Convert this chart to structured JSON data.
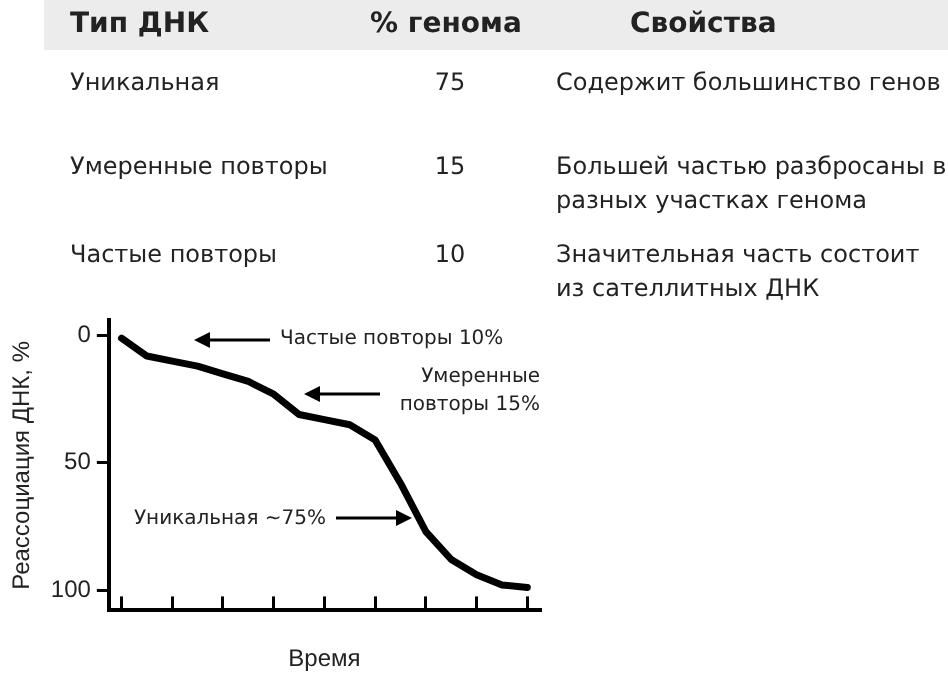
{
  "chart_data": [
    {
      "type": "other",
      "categories": [
        "Уникальная",
        "Умеренные повторы",
        "Частые повторы"
      ],
      "values": [
        75,
        15,
        10
      ],
      "data_labels": true,
      "annotations": [
        "Тип ДНК",
        "% генома",
        "Свойства",
        "Содержит большинство генов",
        "Большей частью разбросаны в разных участках генома",
        "Значительная часть состоит из сателлитных ДНК"
      ]
    },
    {
      "type": "line",
      "xlabel": "Время",
      "ylabel": "Реассоциация ДНК, %",
      "categories": [
        null,
        null,
        null,
        null,
        null,
        null,
        null,
        null,
        null,
        null,
        null,
        null,
        null,
        null,
        null,
        null,
        null
      ],
      "ylim": [
        108,
        -6
      ],
      "yticks": [
        0,
        50,
        100
      ],
      "grid": false,
      "legend": false,
      "marker": "none",
      "series": [
        {
          "color": "#000000",
          "values": [
            1,
            8,
            10,
            12,
            15,
            18,
            23,
            31,
            33,
            35,
            41,
            58,
            77,
            88,
            94,
            98,
            99
          ]
        }
      ],
      "annotations": [
        "Частые повторы 10%",
        "Умеренные повторы 15%",
        "Уникальная ~75%"
      ]
    }
  ]
}
